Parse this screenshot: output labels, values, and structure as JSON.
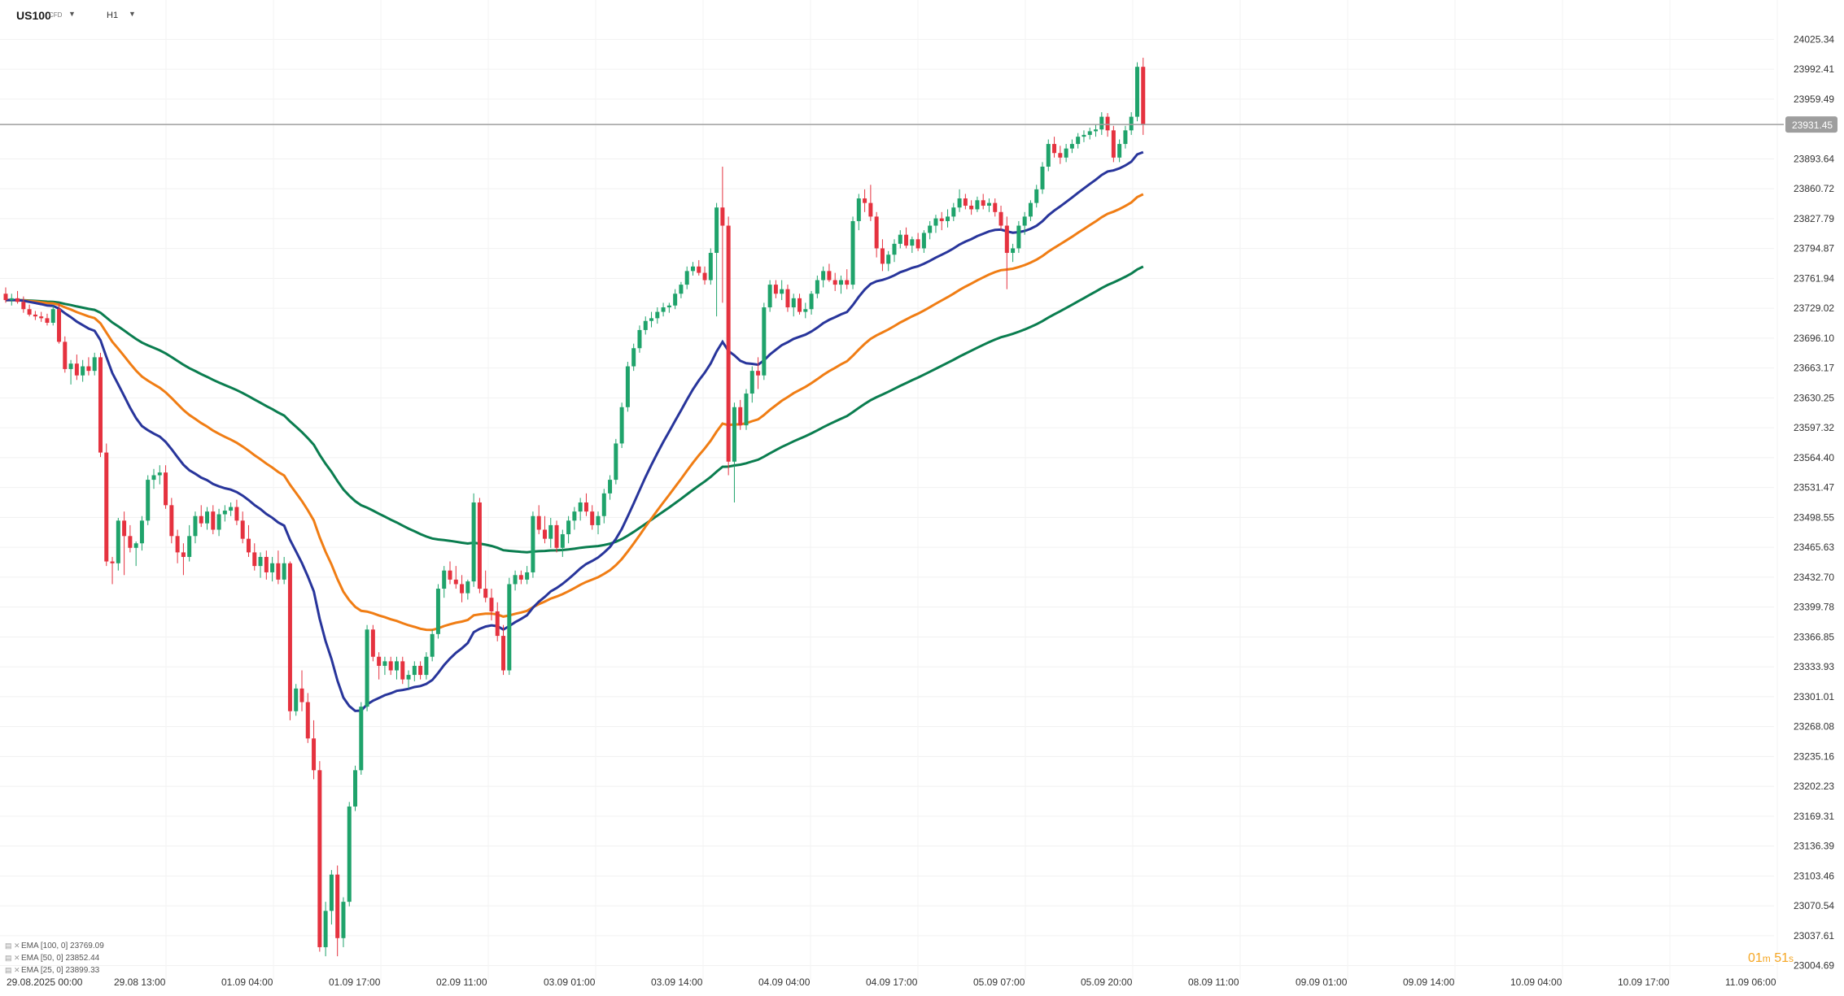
{
  "header": {
    "symbol": "US100",
    "symbol_type": "CFD",
    "timeframe": "H1"
  },
  "legend": [
    {
      "label": "EMA [100, 0]",
      "value": "23769.09",
      "color": "#0a7d4f"
    },
    {
      "label": "EMA [50, 0]",
      "value": "23852.44",
      "color": "#f07d14"
    },
    {
      "label": "EMA [25, 0]",
      "value": "23899.33",
      "color": "#28359b"
    }
  ],
  "countdown": {
    "minutes": "01",
    "m": "m",
    "seconds": "51",
    "s": "s"
  },
  "colors": {
    "bull": "#1fa36b",
    "bear": "#e5323f",
    "ema100": "#0a7d4f",
    "ema50": "#f07d14",
    "ema25": "#28359b",
    "price_line": "#9e9e9e",
    "price_tag": "#9e9e9e"
  },
  "chart_data": {
    "type": "candlestick",
    "title": "US100 CFD H1",
    "price_axis_ticks": [
      "24025.34",
      "23992.41",
      "23959.49",
      "23893.64",
      "23860.72",
      "23827.79",
      "23794.87",
      "23761.94",
      "23729.02",
      "23696.10",
      "23663.17",
      "23630.25",
      "23597.32",
      "23564.40",
      "23531.47",
      "23498.55",
      "23465.63",
      "23432.70",
      "23399.78",
      "23366.85",
      "23333.93",
      "23301.01",
      "23268.08",
      "23235.16",
      "23202.23",
      "23169.31",
      "23136.39",
      "23103.46",
      "23070.54",
      "23037.61",
      "23004.69"
    ],
    "ylim": [
      22989.13,
      24041.76
    ],
    "time_axis_labels": [
      "29.08.2025  00:00",
      "29.08  13:00",
      "01.09  04:00",
      "01.09  17:00",
      "02.09  11:00",
      "03.09  01:00",
      "03.09  14:00",
      "04.09  04:00",
      "04.09  17:00",
      "05.09  07:00",
      "05.09  20:00",
      "08.09  11:00",
      "09.09  01:00",
      "09.09  14:00",
      "10.09  04:00",
      "10.09  17:00",
      "11.09  06:00"
    ],
    "current_price": "23931.45",
    "candles": [
      [
        23745,
        23752,
        23735,
        23738
      ],
      [
        23738,
        23745,
        23732,
        23740
      ],
      [
        23740,
        23748,
        23734,
        23736
      ],
      [
        23736,
        23742,
        23724,
        23728
      ],
      [
        23728,
        23733,
        23720,
        23722
      ],
      [
        23722,
        23726,
        23716,
        23720
      ],
      [
        23720,
        23725,
        23714,
        23718
      ],
      [
        23718,
        23723,
        23710,
        23713
      ],
      [
        23713,
        23732,
        23710,
        23728
      ],
      [
        23728,
        23735,
        23690,
        23692
      ],
      [
        23692,
        23698,
        23658,
        23662
      ],
      [
        23662,
        23672,
        23645,
        23668
      ],
      [
        23668,
        23678,
        23650,
        23655
      ],
      [
        23655,
        23672,
        23648,
        23665
      ],
      [
        23665,
        23675,
        23655,
        23660
      ],
      [
        23660,
        23680,
        23655,
        23675
      ],
      [
        23675,
        23680,
        23565,
        23570
      ],
      [
        23570,
        23580,
        23445,
        23450
      ],
      [
        23450,
        23455,
        23425,
        23448
      ],
      [
        23448,
        23498,
        23440,
        23495
      ],
      [
        23495,
        23505,
        23435,
        23478
      ],
      [
        23478,
        23490,
        23460,
        23465
      ],
      [
        23465,
        23472,
        23445,
        23470
      ],
      [
        23470,
        23500,
        23462,
        23495
      ],
      [
        23495,
        23545,
        23490,
        23540
      ],
      [
        23540,
        23552,
        23530,
        23545
      ],
      [
        23545,
        23556,
        23535,
        23548
      ],
      [
        23548,
        23556,
        23508,
        23512
      ],
      [
        23512,
        23520,
        23470,
        23478
      ],
      [
        23478,
        23485,
        23448,
        23460
      ],
      [
        23460,
        23470,
        23435,
        23455
      ],
      [
        23455,
        23490,
        23450,
        23478
      ],
      [
        23478,
        23505,
        23470,
        23500
      ],
      [
        23500,
        23512,
        23488,
        23492
      ],
      [
        23492,
        23510,
        23485,
        23505
      ],
      [
        23505,
        23512,
        23480,
        23485
      ],
      [
        23485,
        23508,
        23478,
        23502
      ],
      [
        23502,
        23512,
        23494,
        23506
      ],
      [
        23506,
        23515,
        23500,
        23510
      ],
      [
        23510,
        23518,
        23490,
        23495
      ],
      [
        23495,
        23505,
        23470,
        23475
      ],
      [
        23475,
        23490,
        23455,
        23460
      ],
      [
        23460,
        23470,
        23440,
        23445
      ],
      [
        23445,
        23460,
        23432,
        23455
      ],
      [
        23455,
        23462,
        23430,
        23438
      ],
      [
        23438,
        23455,
        23428,
        23448
      ],
      [
        23448,
        23462,
        23425,
        23430
      ],
      [
        23430,
        23455,
        23425,
        23448
      ],
      [
        23448,
        23450,
        23275,
        23285
      ],
      [
        23285,
        23315,
        23280,
        23310
      ],
      [
        23310,
        23330,
        23285,
        23295
      ],
      [
        23295,
        23305,
        23250,
        23255
      ],
      [
        23255,
        23275,
        23210,
        23220
      ],
      [
        23220,
        23230,
        23020,
        23025
      ],
      [
        23025,
        23075,
        23015,
        23065
      ],
      [
        23065,
        23110,
        23050,
        23105
      ],
      [
        23105,
        23115,
        23015,
        23035
      ],
      [
        23035,
        23080,
        23025,
        23075
      ],
      [
        23075,
        23185,
        23070,
        23180
      ],
      [
        23180,
        23225,
        23175,
        23220
      ],
      [
        23220,
        23295,
        23215,
        23290
      ],
      [
        23290,
        23380,
        23285,
        23375
      ],
      [
        23375,
        23380,
        23340,
        23345
      ],
      [
        23345,
        23350,
        23320,
        23335
      ],
      [
        23335,
        23345,
        23325,
        23340
      ],
      [
        23340,
        23345,
        23325,
        23330
      ],
      [
        23330,
        23345,
        23320,
        23340
      ],
      [
        23340,
        23345,
        23315,
        23320
      ],
      [
        23320,
        23330,
        23310,
        23325
      ],
      [
        23325,
        23340,
        23318,
        23335
      ],
      [
        23335,
        23340,
        23320,
        23325
      ],
      [
        23325,
        23350,
        23320,
        23345
      ],
      [
        23345,
        23375,
        23340,
        23370
      ],
      [
        23370,
        23425,
        23365,
        23420
      ],
      [
        23420,
        23445,
        23410,
        23440
      ],
      [
        23440,
        23450,
        23425,
        23430
      ],
      [
        23430,
        23445,
        23420,
        23425
      ],
      [
        23425,
        23435,
        23405,
        23415
      ],
      [
        23415,
        23430,
        23408,
        23428
      ],
      [
        23428,
        23525,
        23422,
        23515
      ],
      [
        23515,
        23520,
        23415,
        23420
      ],
      [
        23420,
        23440,
        23405,
        23410
      ],
      [
        23410,
        23420,
        23385,
        23395
      ],
      [
        23395,
        23405,
        23362,
        23368
      ],
      [
        23368,
        23380,
        23325,
        23330
      ],
      [
        23330,
        23432,
        23325,
        23425
      ],
      [
        23425,
        23440,
        23418,
        23435
      ],
      [
        23435,
        23440,
        23425,
        23430
      ],
      [
        23430,
        23445,
        23425,
        23438
      ],
      [
        23438,
        23505,
        23432,
        23500
      ],
      [
        23500,
        23512,
        23480,
        23485
      ],
      [
        23485,
        23500,
        23470,
        23475
      ],
      [
        23475,
        23498,
        23465,
        23490
      ],
      [
        23490,
        23495,
        23460,
        23465
      ],
      [
        23465,
        23485,
        23455,
        23480
      ],
      [
        23480,
        23500,
        23470,
        23495
      ],
      [
        23495,
        23510,
        23485,
        23505
      ],
      [
        23505,
        23520,
        23495,
        23515
      ],
      [
        23515,
        23525,
        23500,
        23505
      ],
      [
        23505,
        23512,
        23485,
        23490
      ],
      [
        23490,
        23505,
        23480,
        23500
      ],
      [
        23500,
        23530,
        23492,
        23525
      ],
      [
        23525,
        23545,
        23518,
        23540
      ],
      [
        23540,
        23585,
        23535,
        23580
      ],
      [
        23580,
        23625,
        23575,
        23620
      ],
      [
        23620,
        23670,
        23615,
        23665
      ],
      [
        23665,
        23690,
        23660,
        23685
      ],
      [
        23685,
        23710,
        23680,
        23705
      ],
      [
        23705,
        23720,
        23700,
        23715
      ],
      [
        23715,
        23725,
        23708,
        23718
      ],
      [
        23718,
        23730,
        23712,
        23725
      ],
      [
        23725,
        23735,
        23720,
        23730
      ],
      [
        23730,
        23735,
        23724,
        23732
      ],
      [
        23732,
        23750,
        23728,
        23745
      ],
      [
        23745,
        23758,
        23740,
        23755
      ],
      [
        23755,
        23775,
        23750,
        23770
      ],
      [
        23770,
        23780,
        23765,
        23775
      ],
      [
        23775,
        23782,
        23765,
        23768
      ],
      [
        23768,
        23775,
        23755,
        23760
      ],
      [
        23760,
        23795,
        23755,
        23790
      ],
      [
        23790,
        23845,
        23720,
        23840
      ],
      [
        23840,
        23885,
        23735,
        23820
      ],
      [
        23820,
        23830,
        23545,
        23560
      ],
      [
        23560,
        23625,
        23515,
        23620
      ],
      [
        23620,
        23628,
        23595,
        23600
      ],
      [
        23600,
        23640,
        23595,
        23635
      ],
      [
        23635,
        23665,
        23625,
        23660
      ],
      [
        23660,
        23675,
        23640,
        23655
      ],
      [
        23655,
        23735,
        23650,
        23730
      ],
      [
        23730,
        23760,
        23725,
        23755
      ],
      [
        23755,
        23760,
        23740,
        23745
      ],
      [
        23745,
        23760,
        23738,
        23750
      ],
      [
        23750,
        23755,
        23725,
        23730
      ],
      [
        23730,
        23745,
        23720,
        23740
      ],
      [
        23740,
        23745,
        23722,
        23725
      ],
      [
        23725,
        23735,
        23718,
        23728
      ],
      [
        23728,
        23748,
        23722,
        23745
      ],
      [
        23745,
        23765,
        23740,
        23760
      ],
      [
        23760,
        23775,
        23752,
        23770
      ],
      [
        23770,
        23778,
        23758,
        23760
      ],
      [
        23760,
        23768,
        23748,
        23755
      ],
      [
        23755,
        23765,
        23745,
        23760
      ],
      [
        23760,
        23772,
        23750,
        23755
      ],
      [
        23755,
        23830,
        23750,
        23825
      ],
      [
        23825,
        23855,
        23815,
        23850
      ],
      [
        23850,
        23860,
        23835,
        23845
      ],
      [
        23845,
        23865,
        23825,
        23830
      ],
      [
        23830,
        23835,
        23785,
        23795
      ],
      [
        23795,
        23805,
        23770,
        23778
      ],
      [
        23778,
        23792,
        23770,
        23788
      ],
      [
        23788,
        23805,
        23780,
        23800
      ],
      [
        23800,
        23815,
        23795,
        23810
      ],
      [
        23810,
        23818,
        23795,
        23798
      ],
      [
        23798,
        23808,
        23790,
        23805
      ],
      [
        23805,
        23812,
        23792,
        23795
      ],
      [
        23795,
        23815,
        23790,
        23812
      ],
      [
        23812,
        23825,
        23805,
        23820
      ],
      [
        23820,
        23832,
        23812,
        23828
      ],
      [
        23828,
        23835,
        23815,
        23825
      ],
      [
        23825,
        23838,
        23818,
        23830
      ],
      [
        23830,
        23845,
        23825,
        23840
      ],
      [
        23840,
        23860,
        23835,
        23850
      ],
      [
        23850,
        23855,
        23838,
        23842
      ],
      [
        23842,
        23848,
        23832,
        23838
      ],
      [
        23838,
        23852,
        23835,
        23848
      ],
      [
        23848,
        23855,
        23838,
        23842
      ],
      [
        23842,
        23850,
        23835,
        23845
      ],
      [
        23845,
        23850,
        23830,
        23835
      ],
      [
        23835,
        23842,
        23815,
        23820
      ],
      [
        23820,
        23830,
        23750,
        23790
      ],
      [
        23790,
        23800,
        23780,
        23795
      ],
      [
        23795,
        23825,
        23790,
        23820
      ],
      [
        23820,
        23835,
        23810,
        23830
      ],
      [
        23830,
        23848,
        23825,
        23845
      ],
      [
        23845,
        23865,
        23840,
        23860
      ],
      [
        23860,
        23890,
        23855,
        23885
      ],
      [
        23885,
        23915,
        23880,
        23910
      ],
      [
        23910,
        23918,
        23895,
        23900
      ],
      [
        23900,
        23908,
        23888,
        23895
      ],
      [
        23895,
        23910,
        23890,
        23905
      ],
      [
        23905,
        23915,
        23900,
        23910
      ],
      [
        23910,
        23922,
        23905,
        23918
      ],
      [
        23918,
        23925,
        23912,
        23920
      ],
      [
        23920,
        23928,
        23915,
        23924
      ],
      [
        23924,
        23932,
        23918,
        23926
      ],
      [
        23926,
        23945,
        23920,
        23940
      ],
      [
        23940,
        23944,
        23918,
        23925
      ],
      [
        23925,
        23930,
        23890,
        23895
      ],
      [
        23895,
        23915,
        23890,
        23910
      ],
      [
        23910,
        23930,
        23905,
        23925
      ],
      [
        23925,
        23945,
        23920,
        23940
      ],
      [
        23940,
        24000,
        23935,
        23995
      ],
      [
        23995,
        24005,
        23920,
        23931.45
      ]
    ],
    "ema100_value": 23769.09,
    "ema50_value": 23852.44,
    "ema25_value": 23899.33
  }
}
